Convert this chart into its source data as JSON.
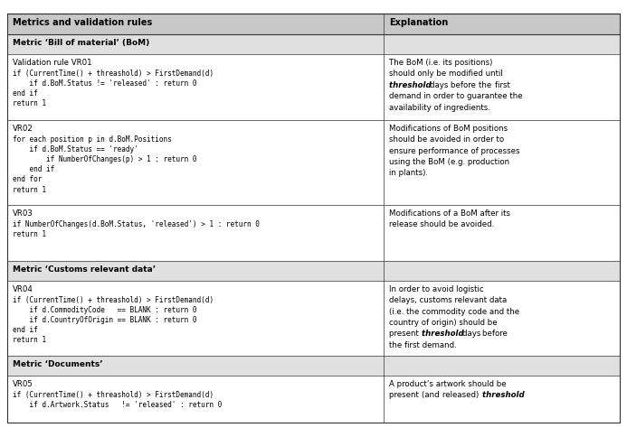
{
  "col_header": [
    "Metrics and validation rules",
    "Explanation"
  ],
  "col_split": 0.615,
  "background_color": "#ffffff",
  "header_bg": "#c8c8c8",
  "section_bg": "#e0e0e0",
  "border_color": "#333333",
  "header_font_size": 7.0,
  "body_font_size": 6.2,
  "code_font_size": 5.6,
  "rows": [
    {
      "type": "section",
      "left": "Metric ‘Bill of material’ (BoM)",
      "right": ""
    },
    {
      "type": "data",
      "left_label": "Validation rule VR01",
      "left_code": "if (CurrentTime() + threashold) > FirstDemand(d)\n    if d.BoM.Status != 'released' : return 0\nend if\nreturn 1",
      "right_parts": [
        {
          "text": "The BoM (i.e. its positions) should only be modified until ",
          "italic": false
        },
        {
          "text": "threshold",
          "italic": true
        },
        {
          "text": " days before the first demand in order to guarantee the availability of ingredients.",
          "italic": false
        }
      ]
    },
    {
      "type": "data",
      "left_label": "VR02",
      "left_code": "for each position p in d.BoM.Positions\n    if d.BoM.Status == 'ready'\n        if NumberOfChanges(p) > 1 : return 0\n    end if\nend for\nreturn 1",
      "right_parts": [
        {
          "text": "Modifications of BoM positions should be avoided in order to ensure performance of processes using the BoM (e.g. production in plants).",
          "italic": false
        }
      ]
    },
    {
      "type": "data",
      "left_label": "VR03",
      "left_code": "if NumberOfChanges(d.BoM.Status, 'released') > 1 : return 0\nreturn 1",
      "right_parts": [
        {
          "text": "Modifications of a BoM after its release should be avoided.",
          "italic": false
        }
      ]
    },
    {
      "type": "section",
      "left": "Metric ‘Customs relevant data’",
      "right": ""
    },
    {
      "type": "data",
      "left_label": "VR04",
      "left_code": "if (CurrentTime() + threashold) > FirstDemand(d)\n    if d.CommodityCode   == BLANK : return 0\n    if d.CountryOfOrigin == BLANK : return 0\nend if\nreturn 1",
      "right_parts": [
        {
          "text": "In order to avoid logistic delays, customs relevant data (i.e. the commodity code and the country of origin) should be present ",
          "italic": false
        },
        {
          "text": "threshold",
          "italic": true
        },
        {
          "text": " days before the first demand.",
          "italic": false
        }
      ]
    },
    {
      "type": "section",
      "left": "Metric ‘Documents’",
      "right": ""
    },
    {
      "type": "data",
      "left_label": "VR05",
      "left_code": "if (CurrentTime() + threashold) > FirstDemand(d)\n    if d.Artwork.Status   != 'released' : return 0",
      "right_parts": [
        {
          "text": "A product’s artwork should be present (and released) ",
          "italic": false
        },
        {
          "text": "threshold",
          "italic": true
        }
      ]
    }
  ]
}
